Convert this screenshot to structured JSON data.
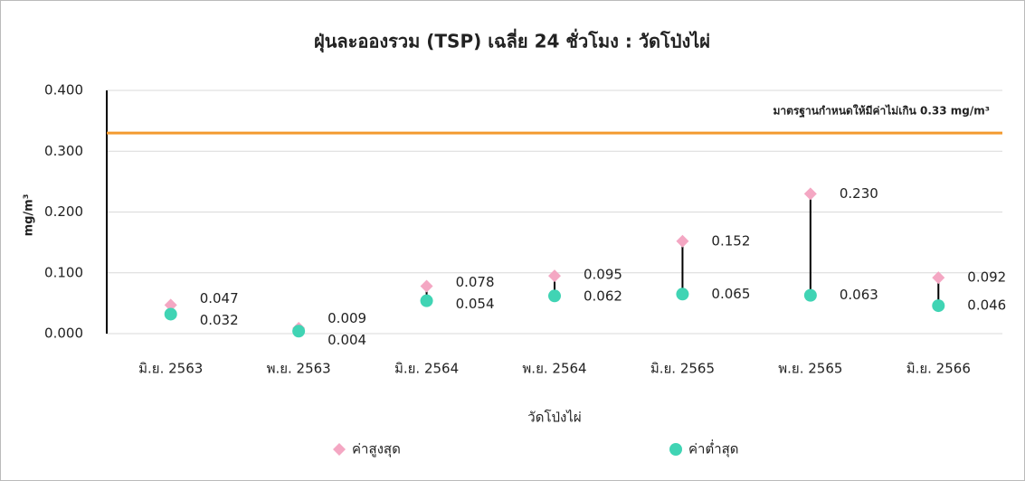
{
  "chart_data": {
    "type": "highlow",
    "title": "ฝุ่นละอองรวม (TSP) เฉลี่ย 24 ชั่วโมง : วัดโป่งไผ่",
    "x_label": "วัดโป่งไผ่",
    "y_label": "mg/m³",
    "categories": [
      "มิ.ย. 2563",
      "พ.ย. 2563",
      "มิ.ย. 2564",
      "พ.ย. 2564",
      "มิ.ย. 2565",
      "พ.ย. 2565",
      "มิ.ย. 2566"
    ],
    "series": [
      {
        "name": "ค่าสูงสุด",
        "color": "#f4a7c3",
        "marker": "diamond",
        "values": [
          0.047,
          0.009,
          0.078,
          0.095,
          0.152,
          0.23,
          0.092
        ],
        "value_labels": [
          "0.047",
          "0.009",
          "0.078",
          "0.095",
          "0.152",
          "0.230",
          "0.092"
        ]
      },
      {
        "name": "ค่าต่ำสุด",
        "color": "#40d4b4",
        "marker": "circle",
        "values": [
          0.032,
          0.004,
          0.054,
          0.062,
          0.065,
          0.063,
          0.046
        ],
        "value_labels": [
          "0.032",
          "0.004",
          "0.054",
          "0.062",
          "0.065",
          "0.063",
          "0.046"
        ]
      }
    ],
    "reference_line": {
      "value": 0.33,
      "label": "มาตรฐานกำหนดให้มีค่าไม่เกิน 0.33 mg/m³",
      "color": "#f39a2f"
    },
    "ylim": [
      0,
      0.4
    ],
    "yticks": [
      {
        "value": 0,
        "label": "0.000"
      },
      {
        "value": 0.1,
        "label": "0.100"
      },
      {
        "value": 0.2,
        "label": "0.200"
      },
      {
        "value": 0.3,
        "label": "0.300"
      },
      {
        "value": 0.4,
        "label": "0.400"
      }
    ],
    "grid": true
  }
}
